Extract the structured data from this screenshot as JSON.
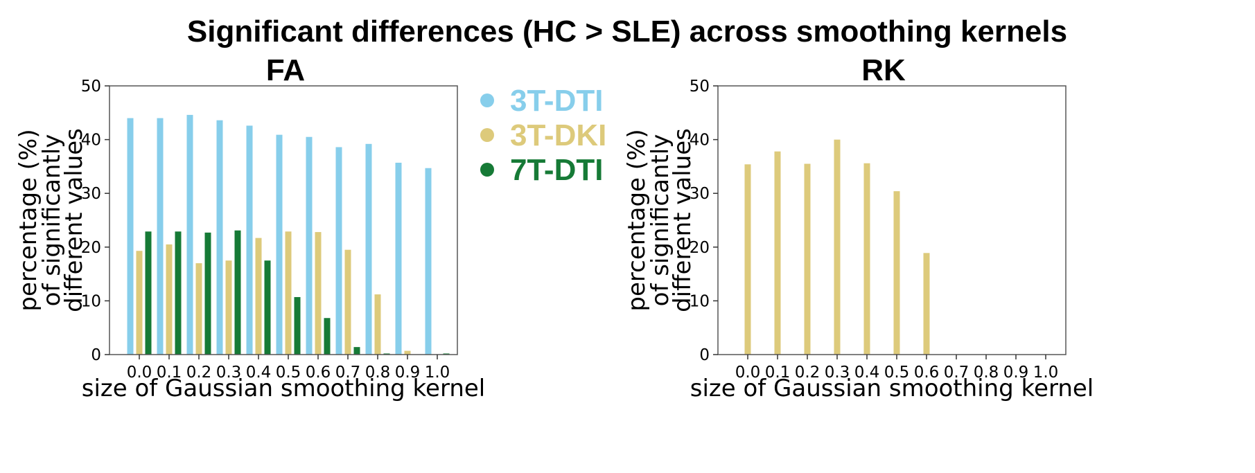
{
  "figure": {
    "title": "Significant differences (HC > SLE) across smoothing kernels"
  },
  "legend": {
    "items": [
      {
        "label": "3T-DTI",
        "color": "#87CEEB"
      },
      {
        "label": "3T-DKI",
        "color": "#DDCA7B"
      },
      {
        "label": "7T-DTI",
        "color": "#167A36"
      }
    ]
  },
  "chart_data": [
    {
      "type": "bar",
      "title": "FA",
      "xlabel": "size of Gaussian smoothing kernel",
      "ylabel_lines": [
        "percentage (%)",
        "of significantly",
        "different values"
      ],
      "categories": [
        "0.0",
        "0.1",
        "0.2",
        "0.3",
        "0.4",
        "0.5",
        "0.6",
        "0.7",
        "0.8",
        "0.9",
        "1.0"
      ],
      "ylim": [
        0,
        50
      ],
      "yticks": [
        0,
        10,
        20,
        30,
        40,
        50
      ],
      "series": [
        {
          "name": "3T-DTI",
          "color": "#87CEEB",
          "values": [
            44.0,
            44.0,
            44.6,
            43.6,
            42.6,
            40.9,
            40.5,
            38.6,
            39.2,
            35.7,
            34.7
          ]
        },
        {
          "name": "3T-DKI",
          "color": "#DDCA7B",
          "values": [
            19.3,
            20.5,
            17.0,
            17.5,
            21.7,
            22.9,
            22.8,
            19.5,
            11.2,
            0.7,
            0.0
          ]
        },
        {
          "name": "7T-DTI",
          "color": "#167A36",
          "values": [
            22.9,
            22.9,
            22.7,
            23.1,
            17.5,
            10.7,
            6.8,
            1.4,
            0.2,
            0.0,
            0.2
          ]
        }
      ]
    },
    {
      "type": "bar",
      "title": "RK",
      "xlabel": "size of Gaussian smoothing kernel",
      "ylabel_lines": [
        "percentage (%)",
        "of significantly",
        "different values"
      ],
      "categories": [
        "0.0",
        "0.1",
        "0.2",
        "0.3",
        "0.4",
        "0.5",
        "0.6",
        "0.7",
        "0.8",
        "0.9",
        "1.0"
      ],
      "ylim": [
        0,
        50
      ],
      "yticks": [
        0,
        10,
        20,
        30,
        40,
        50
      ],
      "series": [
        {
          "name": "3T-DKI",
          "color": "#DDCA7B",
          "values": [
            35.4,
            37.8,
            35.5,
            40.0,
            35.6,
            30.4,
            18.9,
            0.0,
            0.0,
            0.0,
            0.0
          ]
        }
      ]
    }
  ]
}
